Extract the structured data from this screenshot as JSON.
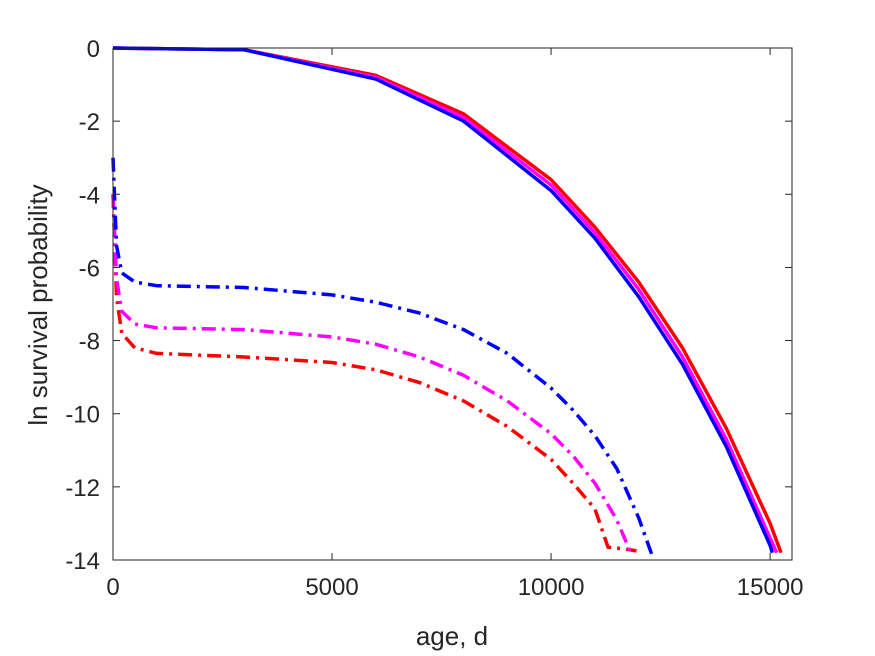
{
  "chart_data": {
    "type": "line",
    "title": "",
    "xlabel": "age, d",
    "ylabel": "ln survival probability",
    "xlim": [
      0,
      15500
    ],
    "ylim": [
      -14,
      0
    ],
    "xticks": [
      0,
      5000,
      10000,
      15000
    ],
    "xtick_labels": [
      "0",
      "5000",
      "10000",
      "15000"
    ],
    "yticks": [
      0,
      -2,
      -4,
      -6,
      -8,
      -10,
      -12,
      -14
    ],
    "ytick_labels": [
      "0",
      "-2",
      "-4",
      "-6",
      "-8",
      "-10",
      "-12",
      "-14"
    ],
    "grid": false,
    "legend": "none",
    "series": [
      {
        "style": "solid",
        "color": "#ff0000",
        "x": [
          0,
          3000,
          6000,
          8000,
          10000,
          11000,
          12000,
          13000,
          14000,
          15000,
          15250
        ],
        "y": [
          0,
          -0.05,
          -0.75,
          -1.8,
          -3.6,
          -4.9,
          -6.4,
          -8.2,
          -10.4,
          -13.0,
          -13.8
        ]
      },
      {
        "style": "solid",
        "color": "#ff00ff",
        "x": [
          0,
          3000,
          6000,
          8000,
          10000,
          11000,
          12000,
          13000,
          14000,
          15000,
          15150
        ],
        "y": [
          0,
          -0.05,
          -0.8,
          -1.9,
          -3.75,
          -5.05,
          -6.6,
          -8.45,
          -10.7,
          -13.4,
          -13.8
        ]
      },
      {
        "style": "solid",
        "color": "#0000ff",
        "x": [
          0,
          3000,
          6000,
          8000,
          10000,
          11000,
          12000,
          13000,
          14000,
          15000,
          15050
        ],
        "y": [
          0,
          -0.05,
          -0.85,
          -2.0,
          -3.9,
          -5.2,
          -6.8,
          -8.65,
          -10.9,
          -13.6,
          -13.8
        ]
      },
      {
        "style": "dashdot",
        "color": "#ff0000",
        "x": [
          0,
          80,
          200,
          500,
          1000,
          3000,
          5000,
          6000,
          7000,
          8000,
          9000,
          10000,
          10500,
          11000,
          11300,
          11700,
          11950
        ],
        "y": [
          -4.0,
          -6.8,
          -7.8,
          -8.2,
          -8.35,
          -8.45,
          -8.6,
          -8.8,
          -9.15,
          -9.65,
          -10.35,
          -11.25,
          -11.9,
          -12.6,
          -13.65,
          -13.7,
          -13.75
        ]
      },
      {
        "style": "dashdot",
        "color": "#ff00ff",
        "x": [
          0,
          80,
          200,
          500,
          1000,
          3000,
          5000,
          6000,
          7000,
          8000,
          9000,
          10000,
          10500,
          11000,
          11500,
          11800
        ],
        "y": [
          -4.0,
          -6.3,
          -7.2,
          -7.55,
          -7.65,
          -7.7,
          -7.9,
          -8.1,
          -8.45,
          -8.95,
          -9.65,
          -10.55,
          -11.15,
          -11.9,
          -12.9,
          -13.75
        ]
      },
      {
        "style": "dashdot",
        "color": "#0000ff",
        "x": [
          0,
          80,
          200,
          500,
          1000,
          3000,
          5000,
          6000,
          7000,
          8000,
          9000,
          10000,
          10500,
          11000,
          11500,
          12000,
          12300
        ],
        "y": [
          -3.0,
          -5.4,
          -6.15,
          -6.4,
          -6.5,
          -6.55,
          -6.75,
          -6.95,
          -7.25,
          -7.7,
          -8.35,
          -9.3,
          -9.9,
          -10.6,
          -11.5,
          -12.85,
          -13.85
        ]
      }
    ]
  }
}
